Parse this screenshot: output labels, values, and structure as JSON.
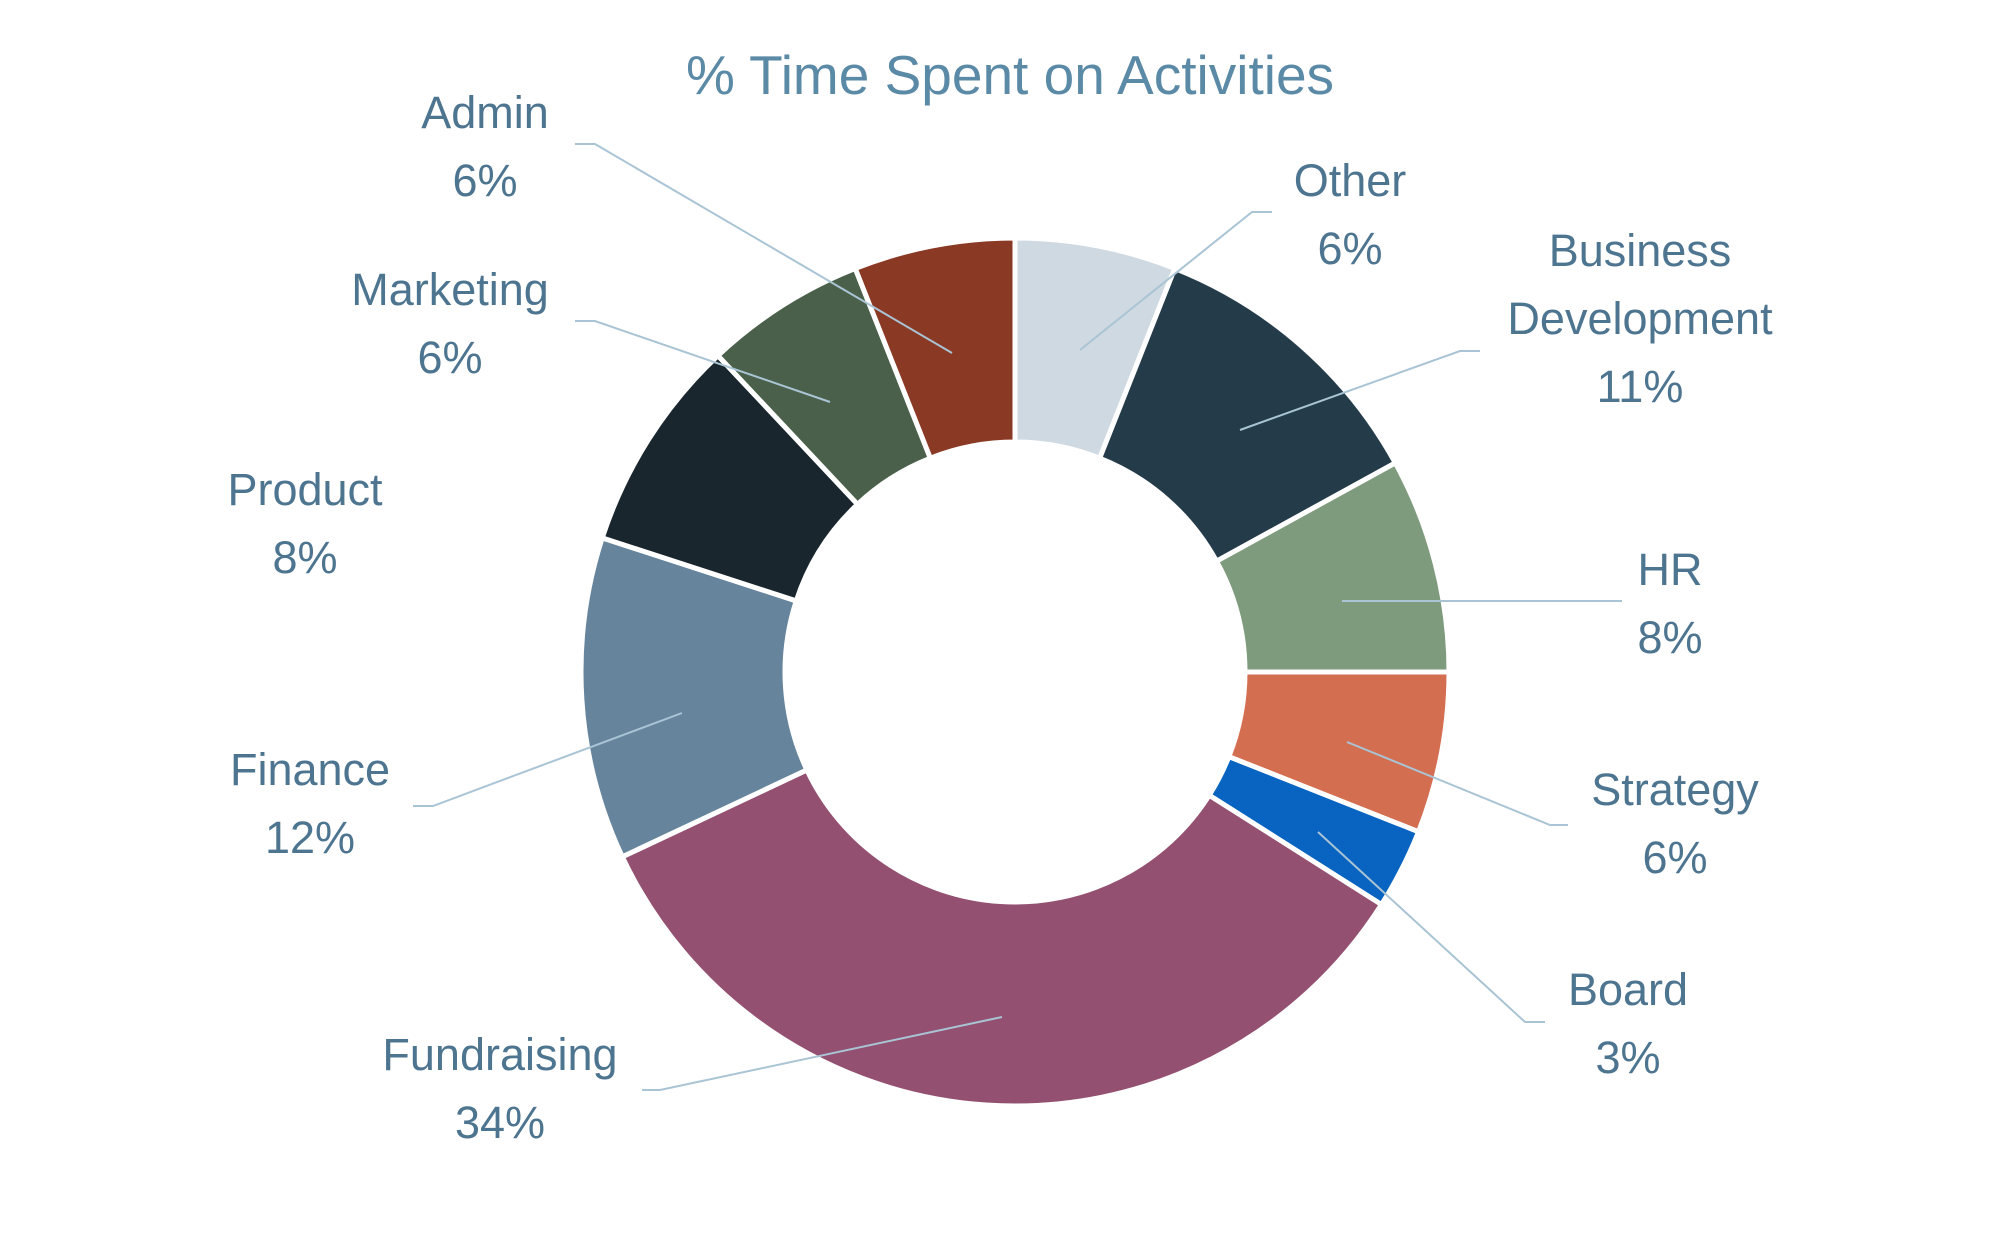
{
  "chart_data": {
    "type": "pie",
    "title": "% Time Spent on Activities",
    "legend": "none",
    "slices": [
      {
        "key": "other",
        "label": [
          "Other"
        ],
        "value": 6,
        "value_label": "6%",
        "color": "#cfd9e1"
      },
      {
        "key": "business-development",
        "label": [
          "Business",
          "Development"
        ],
        "value": 11,
        "value_label": "11%",
        "color": "#243c4a"
      },
      {
        "key": "hr",
        "label": [
          "HR"
        ],
        "value": 8,
        "value_label": "8%",
        "color": "#7e9c7d"
      },
      {
        "key": "strategy",
        "label": [
          "Strategy"
        ],
        "value": 6,
        "value_label": "6%",
        "color": "#d46e50"
      },
      {
        "key": "board",
        "label": [
          "Board"
        ],
        "value": 3,
        "value_label": "3%",
        "color": "#0863c1"
      },
      {
        "key": "fundraising",
        "label": [
          "Fundraising"
        ],
        "value": 34,
        "value_label": "34%",
        "color": "#935070"
      },
      {
        "key": "finance",
        "label": [
          "Finance"
        ],
        "value": 12,
        "value_label": "12%",
        "color": "#66859d"
      },
      {
        "key": "product",
        "label": [
          "Product"
        ],
        "value": 8,
        "value_label": "8%",
        "color": "#1a262d"
      },
      {
        "key": "marketing",
        "label": [
          "Marketing"
        ],
        "value": 6,
        "value_label": "6%",
        "color": "#4a604a"
      },
      {
        "key": "admin",
        "label": [
          "Admin"
        ],
        "value": 6,
        "value_label": "6%",
        "color": "#8a3924"
      }
    ]
  }
}
